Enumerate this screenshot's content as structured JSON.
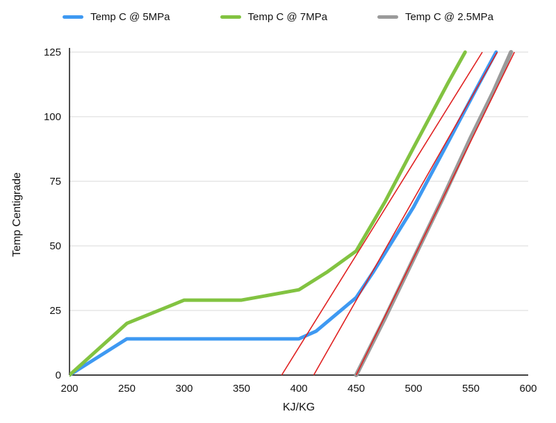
{
  "chart_data": {
    "type": "line",
    "title": "",
    "xlabel": "KJ/KG",
    "ylabel": "Temp Centigrade",
    "xlim": [
      200,
      600
    ],
    "ylim": [
      0,
      125
    ],
    "xticks": [
      200,
      250,
      300,
      350,
      400,
      450,
      500,
      550,
      600
    ],
    "yticks": [
      0,
      25,
      50,
      75,
      100,
      125
    ],
    "grid": "horizontal",
    "grid_color": "#d8d8d8",
    "axis_color": "#000000",
    "legend_position": "top",
    "series": [
      {
        "name": "Temp C @ 5MPa",
        "color": "#3e99f2",
        "width": 5,
        "points": [
          [
            200,
            0
          ],
          [
            250,
            14
          ],
          [
            300,
            14
          ],
          [
            350,
            14
          ],
          [
            400,
            14
          ],
          [
            415,
            17
          ],
          [
            450,
            30
          ],
          [
            465,
            40
          ],
          [
            500,
            65
          ],
          [
            530,
            90
          ],
          [
            555,
            111
          ],
          [
            572,
            125
          ]
        ]
      },
      {
        "name": "Temp C @ 7MPa",
        "color": "#82c341",
        "width": 5,
        "points": [
          [
            200,
            0
          ],
          [
            250,
            20
          ],
          [
            300,
            29
          ],
          [
            350,
            29
          ],
          [
            400,
            33
          ],
          [
            425,
            40
          ],
          [
            450,
            48
          ],
          [
            475,
            67
          ],
          [
            500,
            88
          ],
          [
            530,
            113
          ],
          [
            545,
            125
          ]
        ]
      },
      {
        "name": "Temp C @ 2.5MPa",
        "color": "#9a9a9a",
        "width": 6,
        "points": [
          [
            450,
            0
          ],
          [
            475,
            22
          ],
          [
            500,
            45
          ],
          [
            525,
            68
          ],
          [
            550,
            92
          ],
          [
            570,
            110
          ],
          [
            585,
            125
          ]
        ]
      }
    ],
    "trendlines": [
      {
        "name": "trendline-7mpa",
        "color": "#e02020",
        "width": 1.6,
        "points": [
          [
            385,
            0
          ],
          [
            560,
            125
          ]
        ]
      },
      {
        "name": "trendline-5mpa",
        "color": "#e02020",
        "width": 1.6,
        "points": [
          [
            413,
            0
          ],
          [
            573,
            125
          ]
        ]
      },
      {
        "name": "trendline-2.5mpa",
        "color": "#e02020",
        "width": 1.6,
        "points": [
          [
            450,
            0
          ],
          [
            588,
            125
          ]
        ]
      }
    ]
  }
}
